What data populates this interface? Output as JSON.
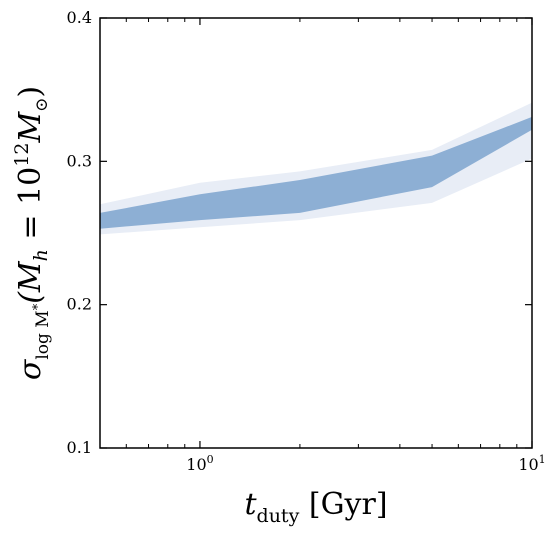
{
  "chart_data": {
    "type": "area",
    "title": "",
    "xlabel": {
      "main": "t",
      "sub": "duty",
      "unit": "[Gyr]"
    },
    "ylabel": {
      "main": "σ",
      "sub": "log M",
      "sub_star": "*",
      "open": "(M",
      "h_sub": "h",
      "eq": " = 10",
      "exp": "12",
      "msun": "M",
      "sun_symbol": "⊙",
      "close": ")"
    },
    "xscale": "log",
    "xlim": [
      0.5,
      10
    ],
    "ylim": [
      0.1,
      0.4
    ],
    "xticks": [
      {
        "value": 1,
        "base": "10",
        "exp": "0"
      },
      {
        "value": 10,
        "base": "10",
        "exp": "1"
      }
    ],
    "yticks": [
      {
        "value": 0.1,
        "label": "0.1"
      },
      {
        "value": 0.2,
        "label": "0.2"
      },
      {
        "value": 0.3,
        "label": "0.3"
      },
      {
        "value": 0.4,
        "label": "0.4"
      }
    ],
    "grid": false,
    "x": [
      0.5,
      1,
      2,
      5,
      10
    ],
    "series": [
      {
        "band": "outer",
        "color": "#e8edf6",
        "lower": [
          0.249,
          0.254,
          0.259,
          0.271,
          0.302
        ],
        "upper": [
          0.27,
          0.285,
          0.293,
          0.308,
          0.341
        ]
      },
      {
        "band": "inner",
        "color": "#8dafd4",
        "lower": [
          0.253,
          0.259,
          0.264,
          0.282,
          0.322
        ],
        "upper": [
          0.264,
          0.277,
          0.287,
          0.304,
          0.331
        ]
      }
    ]
  }
}
